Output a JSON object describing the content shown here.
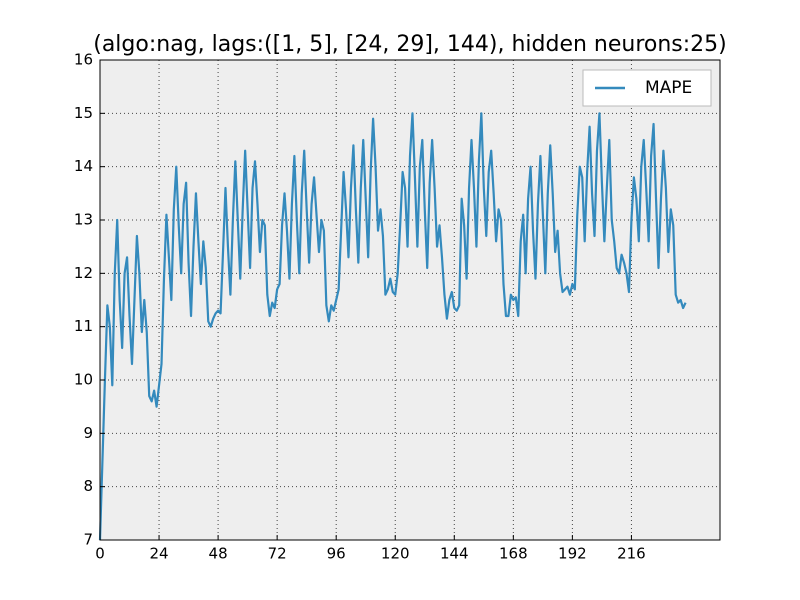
{
  "chart_data": {
    "type": "line",
    "title": "(algo:nag, lags:([1, 5], [24, 29], 144), hidden neurons:25)",
    "x": [
      0,
      1,
      2,
      3,
      4,
      5,
      6,
      7,
      8,
      9,
      10,
      11,
      12,
      13,
      14,
      15,
      16,
      17,
      18,
      19,
      20,
      21,
      22,
      23,
      24,
      25,
      26,
      27,
      28,
      29,
      30,
      31,
      32,
      33,
      34,
      35,
      36,
      37,
      38,
      39,
      40,
      41,
      42,
      43,
      44,
      45,
      46,
      47,
      48,
      49,
      50,
      51,
      52,
      53,
      54,
      55,
      56,
      57,
      58,
      59,
      60,
      61,
      62,
      63,
      64,
      65,
      66,
      67,
      68,
      69,
      70,
      71,
      72,
      73,
      74,
      75,
      76,
      77,
      78,
      79,
      80,
      81,
      82,
      83,
      84,
      85,
      86,
      87,
      88,
      89,
      90,
      91,
      92,
      93,
      94,
      95,
      96,
      97,
      98,
      99,
      100,
      101,
      102,
      103,
      104,
      105,
      106,
      107,
      108,
      109,
      110,
      111,
      112,
      113,
      114,
      115,
      116,
      117,
      118,
      119,
      120,
      121,
      122,
      123,
      124,
      125,
      126,
      127,
      128,
      129,
      130,
      131,
      132,
      133,
      134,
      135,
      136,
      137,
      138,
      139,
      140,
      141,
      142,
      143,
      144,
      145,
      146,
      147,
      148,
      149,
      150,
      151,
      152,
      153,
      154,
      155,
      156,
      157,
      158,
      159,
      160,
      161,
      162,
      163,
      164,
      165,
      166,
      167,
      168,
      169,
      170,
      171,
      172,
      173,
      174,
      175,
      176,
      177,
      178,
      179,
      180,
      181,
      182,
      183,
      184,
      185,
      186,
      187,
      188,
      189,
      190,
      191,
      192,
      193,
      194,
      195,
      196,
      197,
      198,
      199,
      200,
      201,
      202,
      203,
      204,
      205,
      206,
      207,
      208,
      209,
      210,
      211,
      212,
      213,
      214,
      215,
      216,
      217,
      218,
      219,
      220,
      221,
      222,
      223,
      224,
      225,
      226,
      227,
      228,
      229,
      230,
      231,
      232,
      233,
      234,
      235,
      236,
      237,
      238
    ],
    "series": [
      {
        "name": "MAPE",
        "color": "#348abd",
        "values": [
          7.0,
          8.5,
          10.0,
          11.4,
          11.0,
          9.9,
          12.0,
          13.0,
          11.5,
          10.6,
          12.0,
          12.3,
          11.2,
          10.3,
          11.5,
          12.7,
          12.0,
          10.9,
          11.5,
          10.9,
          9.7,
          9.6,
          9.8,
          9.5,
          9.9,
          10.3,
          11.9,
          13.1,
          12.3,
          11.5,
          13.2,
          14.0,
          12.9,
          12.0,
          13.3,
          13.7,
          12.2,
          11.2,
          12.5,
          13.5,
          12.6,
          11.8,
          12.6,
          12.1,
          11.1,
          11.0,
          11.15,
          11.25,
          11.3,
          11.25,
          12.4,
          13.6,
          12.5,
          11.6,
          13.0,
          14.1,
          13.0,
          11.9,
          13.2,
          14.3,
          13.2,
          12.1,
          13.6,
          14.1,
          13.3,
          12.4,
          13.0,
          12.9,
          11.6,
          11.2,
          11.45,
          11.35,
          11.7,
          11.8,
          12.9,
          13.5,
          12.8,
          11.9,
          13.3,
          14.2,
          13.0,
          12.0,
          13.5,
          14.3,
          13.2,
          12.2,
          13.3,
          13.8,
          13.1,
          12.4,
          13.0,
          12.8,
          11.4,
          11.1,
          11.4,
          11.3,
          11.5,
          11.7,
          12.8,
          13.9,
          13.2,
          12.3,
          13.6,
          14.4,
          13.2,
          12.2,
          13.6,
          14.5,
          13.4,
          12.3,
          13.9,
          14.9,
          14.0,
          12.8,
          13.2,
          12.7,
          11.6,
          11.7,
          11.9,
          11.65,
          11.6,
          12.0,
          12.9,
          13.9,
          13.6,
          12.5,
          14.2,
          15.0,
          13.8,
          12.5,
          14.0,
          14.5,
          13.2,
          12.1,
          13.7,
          14.5,
          13.6,
          12.5,
          12.9,
          12.3,
          11.6,
          11.15,
          11.5,
          11.65,
          11.35,
          11.3,
          11.4,
          13.4,
          12.9,
          11.9,
          13.6,
          14.5,
          13.6,
          12.5,
          14.1,
          15.0,
          13.6,
          12.7,
          13.9,
          14.3,
          13.5,
          12.6,
          13.2,
          13.0,
          11.8,
          11.2,
          11.2,
          11.6,
          11.5,
          11.55,
          11.2,
          12.6,
          13.1,
          12.0,
          13.4,
          14.0,
          12.8,
          11.9,
          13.3,
          14.2,
          13.1,
          12.0,
          13.5,
          14.4,
          13.5,
          12.4,
          12.8,
          12.0,
          11.65,
          11.7,
          11.75,
          11.6,
          11.8,
          11.7,
          13.1,
          14.0,
          13.8,
          12.6,
          13.9,
          14.75,
          13.5,
          12.7,
          14.3,
          15.0,
          13.7,
          12.6,
          13.6,
          14.5,
          13.0,
          12.6,
          12.1,
          12.0,
          12.35,
          12.2,
          12.0,
          11.65,
          13.0,
          13.8,
          13.4,
          12.6,
          14.0,
          14.5,
          13.6,
          12.6,
          14.2,
          14.8,
          13.4,
          12.1,
          13.4,
          14.3,
          13.6,
          12.4,
          13.2,
          12.9,
          11.6,
          11.45,
          11.5,
          11.35,
          11.45
        ]
      }
    ],
    "xlim": [
      0,
      252
    ],
    "xticks": [
      0,
      24,
      48,
      72,
      96,
      120,
      144,
      168,
      192,
      216
    ],
    "ylim": [
      7,
      16
    ],
    "yticks": [
      7,
      8,
      9,
      10,
      11,
      12,
      13,
      14,
      15,
      16
    ],
    "grid": true,
    "legend": "upper right"
  }
}
